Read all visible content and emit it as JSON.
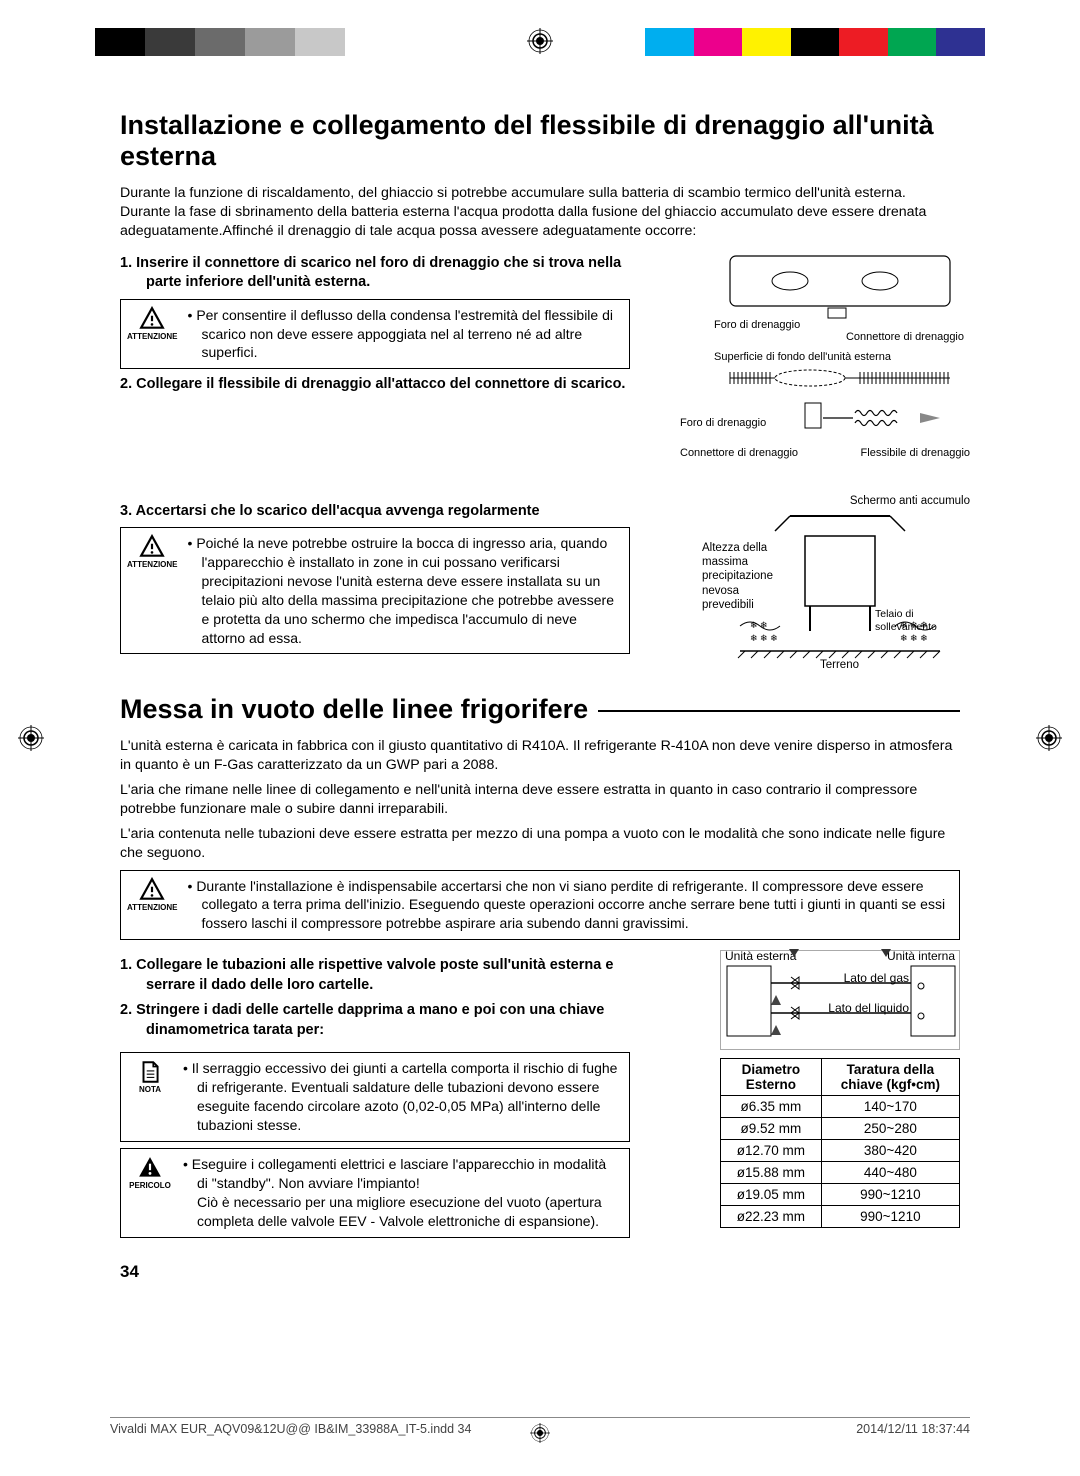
{
  "color_bar_left": [
    "#000000",
    "#3a3a3a",
    "#6b6b6b",
    "#9b9b9b",
    "#c8c8c8"
  ],
  "color_bar_right": [
    "#00aeef",
    "#ec008c",
    "#fff200",
    "#000000",
    "#ed1c24",
    "#00a651",
    "#2e3192"
  ],
  "h1_a": "Installazione e collegamento del flessibile di drenaggio all'unità esterna",
  "intro_a": "Durante la funzione di riscaldamento, del ghiaccio si potrebbe accumulare sulla batteria di scambio termico dell'unità esterna. Durante la fase di sbrinamento della batteria esterna l'acqua prodotta dalla fusione del ghiaccio accumulato deve essere drenata adeguatamente.Affinché il drenaggio di tale acqua possa avessere adeguatamente occorre:",
  "step1": "1.   Inserire il connettore di scarico nel  foro di drenaggio che si trova nella parte inferiore dell'unità esterna.",
  "note1_label": "ATTENZIONE",
  "note1_text": "Per consentire il deflusso della condensa l'estremità del flessibile di scarico non deve essere appoggiata nel al terreno né ad altre superfici.",
  "step2": "2.   Collegare il flessibile di drenaggio all'attacco del connettore di scarico.",
  "step3": "3.   Accertarsi che lo scarico dell'acqua avvenga regolarmente",
  "note2_text": "Poiché la neve potrebbe ostruire la bocca di ingresso aria, quando l'apparecchio è installato in zone in cui possano verificarsi precipitazioni nevose l'unità esterna deve essere installata su un telaio più alto della massima precipitazione che potrebbe avessere  e protetta da uno schermo che impedisca l'accumulo di neve attorno ad essa.",
  "diagram1_labels": {
    "foro": "Foro di drenaggio",
    "connettore": "Connettore di drenaggio",
    "superficie": "Superficie di fondo dell'unità esterna",
    "flessibile": "Flessibile di drenaggio"
  },
  "diagram2_labels": {
    "schermo": "Schermo anti accumulo",
    "altezza": "Altezza della massima precipitazione nevosa prevedibili",
    "telaio": "Telaio di sollevamento",
    "terreno": "Terreno"
  },
  "h1_b": "Messa in vuoto delle linee frigorifere",
  "intro_b1": "L'unità esterna è caricata in fabbrica con il giusto quantitativo di R410A.  Il refrigerante R-410A non deve venire disperso in atmosfera in quanto è un F-Gas caratterizzato da un GWP pari a 2088.",
  "intro_b2": "L'aria che rimane nelle linee di collegamento e nell'unità interna deve essere estratta in quanto in caso contrario il compressore potrebbe funzionare male o subire danni irreparabili.",
  "intro_b3": "L'aria contenuta nelle tubazioni deve essere estratta per mezzo di una pompa a vuoto con le modalità che sono indicate nelle figure che seguono.",
  "note3_text": "Durante l'installazione è indispensabile accertarsi che non vi siano perdite di refrigerante.  Il compressore deve essere collegato a terra prima dell'inizio. Eseguendo queste operazioni occorre anche serrare bene tutti i giunti in quanti se essi fossero laschi il compressore potrebbe aspirare aria subendo danni gravissimi.",
  "step_b1": "1.   Collegare le tubazioni alle rispettive valvole poste sull'unità esterna e serrare il dado delle loro cartelle.",
  "step_b2": "2.   Stringere i dadi delle cartelle dapprima a mano e poi con una chiave dinamometrica tarata per:",
  "note4_label": "NOTA",
  "note4_text": "Il serraggio eccessivo dei giunti a cartella comporta il rischio di fughe di refrigerante.  Eventuali saldature delle tubazioni devono essere eseguite facendo circolare azoto (0,02-0,05 MPa) all'interno delle tubazioni stesse.",
  "note5_label": "PERICOLO",
  "note5_text1": "Eseguire i collegamenti elettrici e lasciare l'apparecchio in modalità di \"standby\". Non avviare l'impianto!",
  "note5_text2": "Ciò è necessario per una migliore esecuzione del vuoto (apertura completa delle valvole EEV - Valvole elettroniche di espansione).",
  "pipe_diagram": {
    "ext": "Unità esterna",
    "int": "Unità interna",
    "gas": "Lato del gas",
    "liq": "Lato del liquido"
  },
  "pipe_table": {
    "head1": "Diametro Esterno",
    "head2": "Taratura della chiave (kgf•cm)",
    "rows": [
      [
        "ø6.35 mm",
        "140~170"
      ],
      [
        "ø9.52 mm",
        "250~280"
      ],
      [
        "ø12.70 mm",
        "380~420"
      ],
      [
        "ø15.88 mm",
        "440~480"
      ],
      [
        "ø19.05 mm",
        "990~1210"
      ],
      [
        "ø22.23 mm",
        "990~1210"
      ]
    ]
  },
  "page_number": "34",
  "footer_left": "Vivaldi MAX EUR_AQV09&12U@@ IB&IM_33988A_IT-5.indd   34",
  "footer_right": "2014/12/11   18:37:44"
}
